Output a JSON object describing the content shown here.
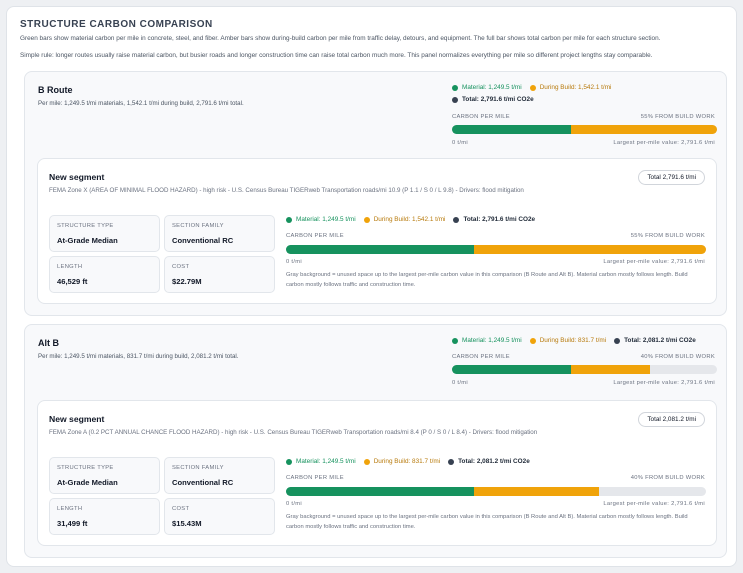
{
  "page": {
    "title": "STRUCTURE CARBON COMPARISON",
    "intro1": "Green bars show material carbon per mile in concrete, steel, and fiber. Amber bars show during-build carbon per mile from traffic delay, detours, and equipment. The full bar shows total carbon per mile for each structure section.",
    "intro2": "Simple rule: longer routes usually raise material carbon, but busier roads and longer construction time can raise total carbon much more. This panel normalizes everything per mile so different project lengths stay comparable."
  },
  "colors": {
    "material": "#16925e",
    "build": "#f0a30a",
    "total": "#374151"
  },
  "bar_common": {
    "label": "CARBON PER MILE",
    "min_label": "0 t/mi",
    "max_label": "Largest per-mile value: 2,791.6 t/mi",
    "max_value": 2791.6,
    "note": "Gray background = unused space up to the largest per-mile carbon value in this comparison (B Route and Alt B). Material carbon mostly follows length. Build carbon mostly follows traffic and construction time."
  },
  "routes": [
    {
      "name": "B Route",
      "summary": "Per mile: 1,249.5 t/mi materials, 1,542.1 t/mi during build, 2,791.6 t/mi total.",
      "legend_material": "Material: 1,249.5 t/mi",
      "legend_build": "During Build: 1,542.1 t/mi",
      "legend_total": "Total: 2,791.6 t/mi CO2e",
      "material": 1249.5,
      "build": 1542.1,
      "build_share": "55% FROM BUILD WORK",
      "segment": {
        "title": "New segment",
        "description": "FEMA Zone X (AREA OF MINIMAL FLOOD HAZARD) - high risk - U.S. Census Bureau TIGERweb Transportation roads/mi 10.9 (P 1.1 / S 0 / L 9.8) - Drivers: flood mitigation",
        "total_pill": "Total 2,791.6 t/mi",
        "legend_material": "Material: 1,249.5 t/mi",
        "legend_build": "During Build: 1,542.1 t/mi",
        "legend_total": "Total: 2,791.6 t/mi CO2e",
        "build_share": "55% FROM BUILD WORK",
        "cards": {
          "structure_type_label": "STRUCTURE TYPE",
          "structure_type": "At-Grade Median",
          "section_family_label": "SECTION FAMILY",
          "section_family": "Conventional RC",
          "length_label": "LENGTH",
          "length": "46,529 ft",
          "cost_label": "COST",
          "cost": "$22.79M"
        }
      }
    },
    {
      "name": "Alt B",
      "summary": "Per mile: 1,249.5 t/mi materials, 831.7 t/mi during build, 2,081.2 t/mi total.",
      "legend_material": "Material: 1,249.5 t/mi",
      "legend_build": "During Build: 831.7 t/mi",
      "legend_total": "Total: 2,081.2 t/mi CO2e",
      "material": 1249.5,
      "build": 831.7,
      "build_share": "40% FROM BUILD WORK",
      "segment": {
        "title": "New segment",
        "description": "FEMA Zone A (0.2 PCT ANNUAL CHANCE FLOOD HAZARD) - high risk - U.S. Census Bureau TIGERweb Transportation roads/mi 8.4 (P 0 / S 0 / L 8.4) - Drivers: flood mitigation",
        "total_pill": "Total 2,081.2 t/mi",
        "legend_material": "Material: 1,249.5 t/mi",
        "legend_build": "During Build: 831.7 t/mi",
        "legend_total": "Total: 2,081.2 t/mi CO2e",
        "build_share": "40% FROM BUILD WORK",
        "cards": {
          "structure_type_label": "STRUCTURE TYPE",
          "structure_type": "At-Grade Median",
          "section_family_label": "SECTION FAMILY",
          "section_family": "Conventional RC",
          "length_label": "LENGTH",
          "length": "31,499 ft",
          "cost_label": "COST",
          "cost": "$15.43M"
        }
      }
    }
  ]
}
